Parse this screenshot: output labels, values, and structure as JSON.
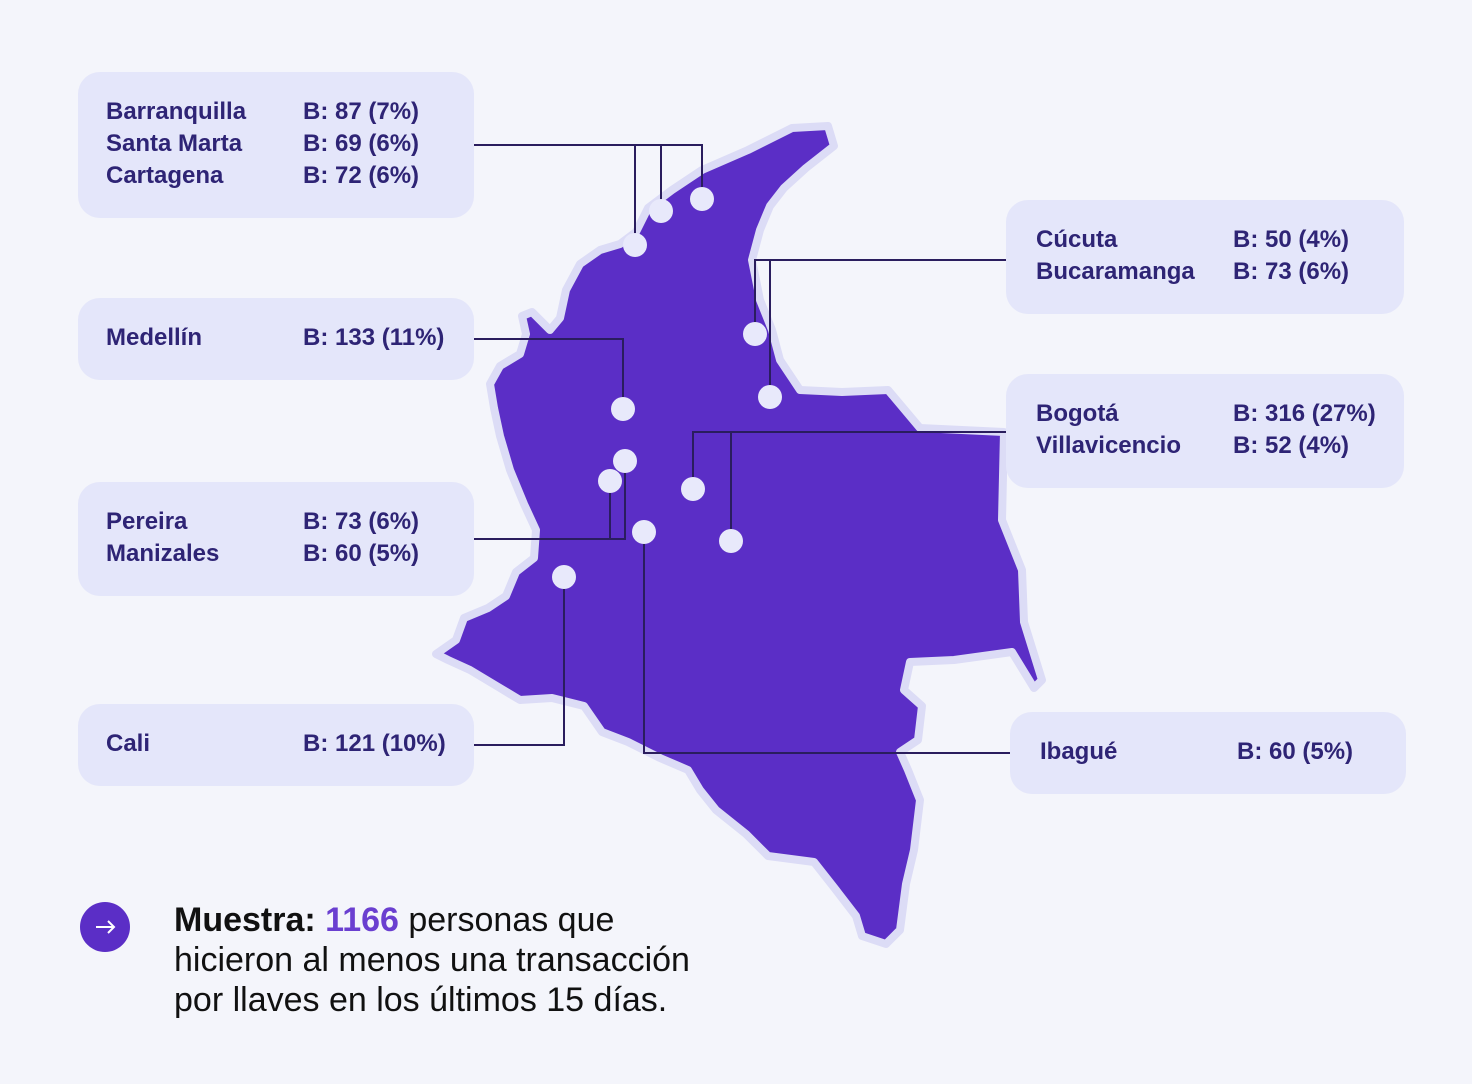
{
  "colors": {
    "background": "#f4f5fb",
    "map_fill": "#5b2ec6",
    "map_outline": "#dcdcf6",
    "card": "#e4e6fa",
    "card_text": "#2e2475",
    "accent": "#6a3fd0",
    "marker": "#e8e9fb",
    "leader_line": "#2a1d5e"
  },
  "cards": [
    {
      "id": "caribe",
      "rows": [
        {
          "city": "Barranquilla",
          "value": "B: 87 (7%)"
        },
        {
          "city": "Santa Marta",
          "value": "B: 69 (6%)"
        },
        {
          "city": "Cartagena",
          "value": "B: 72 (6%)"
        }
      ]
    },
    {
      "id": "medellin",
      "rows": [
        {
          "city": "Medellín",
          "value": "B: 133 (11%)"
        }
      ]
    },
    {
      "id": "eje",
      "rows": [
        {
          "city": "Pereira",
          "value": "B: 73 (6%)"
        },
        {
          "city": "Manizales",
          "value": "B: 60 (5%)"
        }
      ]
    },
    {
      "id": "cali",
      "rows": [
        {
          "city": "Cali",
          "value": "B: 121 (10%)"
        }
      ]
    },
    {
      "id": "santanderes",
      "rows": [
        {
          "city": "Cúcuta",
          "value": "B: 50 (4%)"
        },
        {
          "city": "Bucaramanga",
          "value": "B: 73 (6%)"
        }
      ]
    },
    {
      "id": "centro",
      "rows": [
        {
          "city": "Bogotá",
          "value": "B: 316 (27%)"
        },
        {
          "city": "Villavicencio",
          "value": "B: 52 (4%)"
        }
      ]
    },
    {
      "id": "ibague",
      "rows": [
        {
          "city": "Ibagué",
          "value": "B: 60 (5%)"
        }
      ]
    }
  ],
  "note": {
    "label": "Muestra:",
    "number": "1166",
    "text_line1": " personas que",
    "text_line2": "hicieron al menos una transacción",
    "text_line3": "por llaves en los últimos 15 días."
  },
  "icons": {
    "note_icon": "arrow-right-icon",
    "note_icon_glyph": "→"
  }
}
